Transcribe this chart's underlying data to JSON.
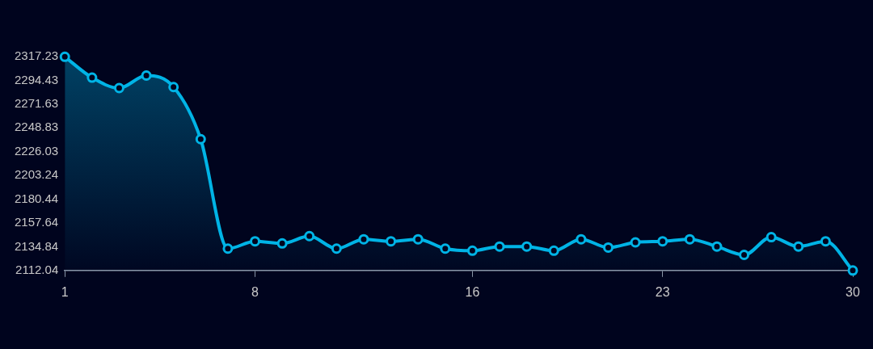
{
  "chart_data": {
    "type": "area",
    "categories": [
      "1",
      null,
      null,
      null,
      null,
      null,
      null,
      "8",
      null,
      null,
      null,
      null,
      null,
      null,
      null,
      "16",
      null,
      null,
      null,
      null,
      null,
      null,
      "23",
      null,
      null,
      null,
      null,
      null,
      null,
      "30"
    ],
    "series": [
      {
        "color": "#00b4e6",
        "values": [
          2317,
          2297,
          2287,
          2299,
          2288,
          2238,
          2133,
          2140,
          2138,
          2145,
          2133,
          2142,
          2140,
          2142,
          2133,
          2131,
          2135,
          2135,
          2131,
          2142,
          2134,
          2139,
          2140,
          2142,
          2135,
          2127,
          2144,
          2135,
          2140,
          2112.04
        ]
      }
    ],
    "ylim": [
      2112.04,
      2317.23
    ],
    "yticks": [
      2112.04,
      2134.84,
      2157.64,
      2180.44,
      2203.24,
      2226.03,
      2248.83,
      2271.63,
      2294.43,
      2317.23
    ],
    "marker": "circle",
    "grid": false,
    "legend": false
  }
}
